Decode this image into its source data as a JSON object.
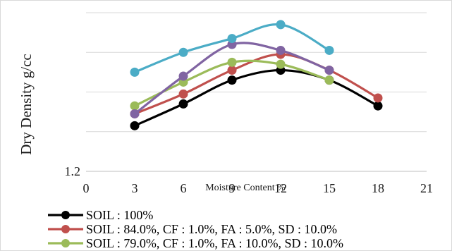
{
  "chart_data": {
    "type": "line",
    "title": "",
    "xlabel": "Moisture Content %",
    "ylabel": "Dry Density g/cc",
    "xlim": [
      0,
      21
    ],
    "x_ticks": [
      0,
      3,
      6,
      9,
      12,
      15,
      18,
      21
    ],
    "ylim": [
      1.2,
      2.0
    ],
    "y_tick_labels_shown": [
      "1.2"
    ],
    "gridlines": "horizontal",
    "legend_position": "bottom",
    "series": [
      {
        "name": "SOIL : 100%",
        "color": "#000000",
        "x": [
          3,
          6,
          9,
          12,
          15,
          18
        ],
        "y": [
          1.43,
          1.54,
          1.66,
          1.71,
          1.66,
          1.53
        ]
      },
      {
        "name": "SOIL : 84.0%, CF : 1.0%, FA : 5.0%, SD : 10.0%",
        "color": "#c0504d",
        "x": [
          3,
          6,
          9,
          12,
          15,
          18
        ],
        "y": [
          1.49,
          1.59,
          1.71,
          1.79,
          1.71,
          1.57
        ]
      },
      {
        "name": "SOIL : 79.0%, CF : 1.0%, FA : 10.0%, SD : 10.0%",
        "color": "#9bbb59",
        "x": [
          3,
          6,
          9,
          12,
          15
        ],
        "y": [
          1.53,
          1.65,
          1.75,
          1.74,
          1.66
        ]
      },
      {
        "name": "",
        "color": "#8064a2",
        "x": [
          3,
          6,
          9,
          12,
          15
        ],
        "y": [
          1.49,
          1.68,
          1.84,
          1.81,
          1.71
        ]
      },
      {
        "name": "",
        "color": "#4bacc6",
        "x": [
          3,
          6,
          9,
          12,
          15
        ],
        "y": [
          1.7,
          1.8,
          1.87,
          1.94,
          1.81
        ]
      }
    ]
  }
}
